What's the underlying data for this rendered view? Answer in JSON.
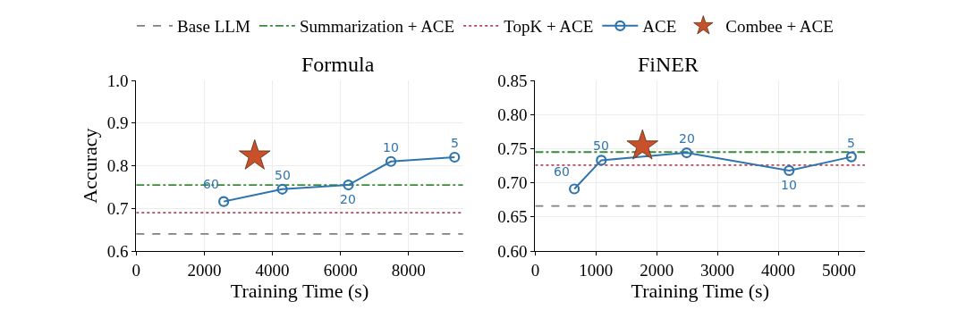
{
  "chart_data": [
    {
      "type": "line",
      "title": "Formula",
      "xlabel": "Training Time (s)",
      "ylabel": "Accuracy",
      "xlim": [
        0,
        9600
      ],
      "xticks": [
        0,
        2000,
        4000,
        6000,
        8000
      ],
      "ylim": [
        0.6,
        1.0
      ],
      "yticks": [
        {
          "value": 0.6,
          "label": "0.6"
        },
        {
          "value": 0.7,
          "label": "0.7"
        },
        {
          "value": 0.8,
          "label": "0.8"
        },
        {
          "value": 0.9,
          "label": "0.9"
        },
        {
          "value": 1.0,
          "label": "1.0"
        }
      ],
      "grid": true,
      "legend": "top",
      "ref_lines": [
        {
          "axis": "y",
          "value": 0.64,
          "label": "Base LLM",
          "color": "#808080",
          "line_style": "dashed"
        },
        {
          "axis": "y",
          "value": 0.755,
          "label": "Summarization + ACE",
          "color": "#3a8a3a",
          "line_style": "dashdot"
        },
        {
          "axis": "y",
          "value": 0.69,
          "label": "TopK + ACE",
          "color": "#b5485d",
          "line_style": "dotted"
        }
      ],
      "series": [
        {
          "name": "ACE",
          "color": "#2f74ad",
          "marker": "circle",
          "x": [
            2570,
            4290,
            6230,
            7480,
            9350
          ],
          "values": [
            0.716,
            0.745,
            0.755,
            0.81,
            0.82
          ]
        },
        {
          "name": "Combee + ACE",
          "type": "scatter",
          "color": "#c8502a",
          "marker": "star",
          "x": [
            3480
          ],
          "values": [
            0.823
          ]
        }
      ],
      "annotations": [
        {
          "text": "60",
          "x": 2570,
          "y": 0.716
        },
        {
          "text": "50",
          "x": 4290,
          "y": 0.745
        },
        {
          "text": "20",
          "x": 6230,
          "y": 0.755
        },
        {
          "text": "10",
          "x": 7480,
          "y": 0.81
        },
        {
          "text": "5",
          "x": 9350,
          "y": 0.82
        }
      ]
    },
    {
      "type": "line",
      "title": "FiNER",
      "xlabel": "Training Time (s)",
      "xlim": [
        0,
        5430
      ],
      "xticks": [
        0,
        1000,
        2000,
        3000,
        4000,
        5000
      ],
      "ylim": [
        0.6,
        0.85
      ],
      "yticks": [
        {
          "value": 0.6,
          "label": "0.60"
        },
        {
          "value": 0.65,
          "label": "0.65"
        },
        {
          "value": 0.7,
          "label": "0.70"
        },
        {
          "value": 0.75,
          "label": "0.75"
        },
        {
          "value": 0.8,
          "label": "0.80"
        },
        {
          "value": 0.85,
          "label": "0.85"
        }
      ],
      "grid": true,
      "legend": "top",
      "ref_lines": [
        {
          "axis": "y",
          "value": 0.666,
          "color": "#808080",
          "line_style": "dashed"
        },
        {
          "axis": "y",
          "value": 0.745,
          "color": "#3a8a3a",
          "line_style": "dashdot"
        },
        {
          "axis": "y",
          "value": 0.726,
          "color": "#b5485d",
          "line_style": "dotted"
        }
      ],
      "series": [
        {
          "name": "ACE",
          "color": "#2f74ad",
          "marker": "circle",
          "x": [
            644,
            1088,
            2493,
            4180,
            5205
          ],
          "values": [
            0.691,
            0.733,
            0.744,
            0.718,
            0.738
          ]
        },
        {
          "name": "Combee + ACE",
          "type": "scatter",
          "color": "#c8502a",
          "marker": "star",
          "x": [
            1766
          ],
          "values": [
            0.754
          ]
        }
      ],
      "annotations": [
        {
          "text": "60",
          "x": 644,
          "y": 0.691
        },
        {
          "text": "50",
          "x": 1088,
          "y": 0.733
        },
        {
          "text": "20",
          "x": 2493,
          "y": 0.744
        },
        {
          "text": "10",
          "x": 4180,
          "y": 0.718
        },
        {
          "text": "5",
          "x": 5205,
          "y": 0.738
        }
      ]
    }
  ]
}
